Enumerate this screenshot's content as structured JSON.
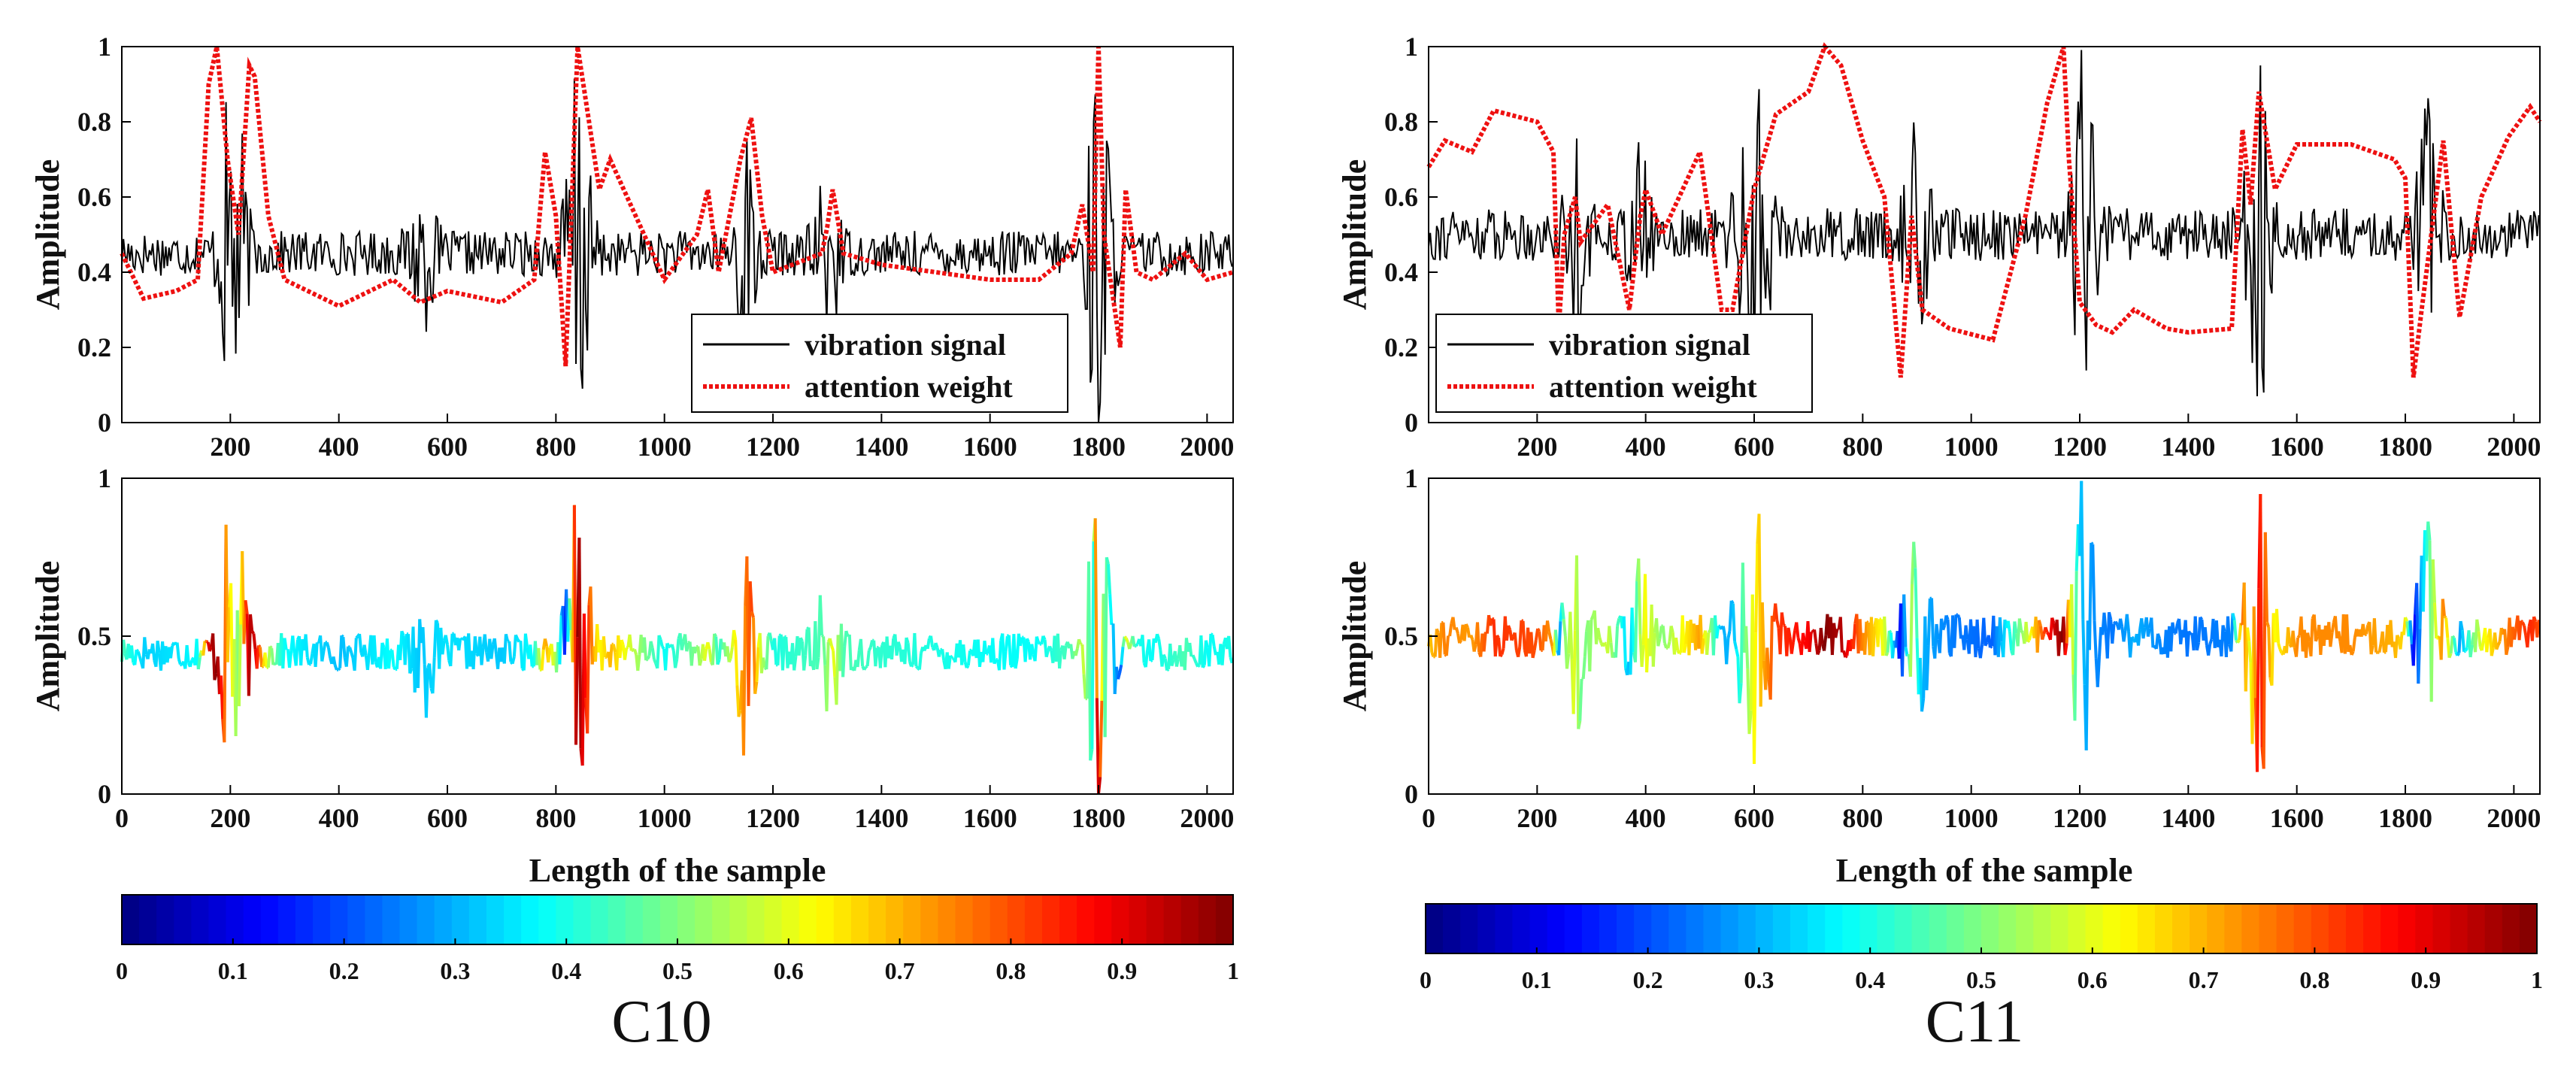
{
  "chart_data": [
    {
      "id": "C10-top",
      "type": "line",
      "xlim": [
        0,
        2048
      ],
      "ylim": [
        0,
        1
      ],
      "xticks": [
        200,
        400,
        600,
        800,
        1000,
        1200,
        1400,
        1600,
        1800,
        2000
      ],
      "yticks": [
        0,
        0.2,
        0.4,
        0.6,
        0.8,
        1
      ],
      "ylabel": "Amplitude",
      "xlabel": "",
      "legend_position": "bottom-right",
      "series": [
        {
          "name": "vibration signal",
          "color": "#000000",
          "style": "solid",
          "baseline": 0.45,
          "noise": 0.06,
          "bursts": [
            {
              "x": 205,
              "amp": 0.5
            },
            {
              "x": 555,
              "amp": 0.16
            },
            {
              "x": 840,
              "amp": 0.5
            },
            {
              "x": 1150,
              "amp": 0.3
            },
            {
              "x": 1300,
              "amp": 0.22
            },
            {
              "x": 1800,
              "amp": 0.5
            }
          ]
        },
        {
          "name": "attention weight",
          "color": "#ee1111",
          "style": "dotted",
          "x": [
            0,
            40,
            100,
            140,
            160,
            175,
            195,
            215,
            235,
            245,
            270,
            300,
            400,
            500,
            550,
            600,
            700,
            760,
            780,
            800,
            818,
            840,
            880,
            900,
            1000,
            1060,
            1080,
            1100,
            1140,
            1160,
            1180,
            1200,
            1290,
            1300,
            1310,
            1330,
            1400,
            1500,
            1600,
            1690,
            1750,
            1770,
            1790,
            1800,
            1810,
            1840,
            1850,
            1870,
            1900,
            1960,
            2000,
            2048
          ],
          "y": [
            0.45,
            0.33,
            0.35,
            0.38,
            0.9,
            1.0,
            0.7,
            0.5,
            0.95,
            0.92,
            0.55,
            0.38,
            0.31,
            0.38,
            0.32,
            0.35,
            0.32,
            0.38,
            0.72,
            0.55,
            0.15,
            1.0,
            0.62,
            0.7,
            0.38,
            0.5,
            0.62,
            0.4,
            0.7,
            0.81,
            0.55,
            0.4,
            0.45,
            0.52,
            0.62,
            0.45,
            0.42,
            0.4,
            0.38,
            0.38,
            0.45,
            0.58,
            0.4,
            1.0,
            0.5,
            0.2,
            0.62,
            0.4,
            0.38,
            0.45,
            0.38,
            0.4
          ]
        }
      ]
    },
    {
      "id": "C10-bottom",
      "type": "line",
      "xlim": [
        0,
        2048
      ],
      "ylim": [
        0,
        1
      ],
      "xticks": [
        0,
        200,
        400,
        600,
        800,
        1000,
        1200,
        1400,
        1600,
        1800,
        2000
      ],
      "yticks": [
        0,
        0.5,
        1
      ],
      "ylabel": "Amplitude",
      "xlabel": "Length of the sample",
      "colormap": "jet",
      "colorbar_ticks": [
        0,
        0.1,
        0.2,
        0.3,
        0.4,
        0.5,
        0.6,
        0.7,
        0.8,
        0.9,
        1
      ],
      "caption": "C10"
    },
    {
      "id": "C11-top",
      "type": "line",
      "xlim": [
        0,
        2048
      ],
      "ylim": [
        0,
        1
      ],
      "xticks": [
        200,
        400,
        600,
        800,
        1000,
        1200,
        1400,
        1600,
        1800,
        2000
      ],
      "yticks": [
        0,
        0.2,
        0.4,
        0.6,
        0.8,
        1
      ],
      "ylabel": "Amplitude",
      "xlabel": "",
      "legend_position": "bottom-left",
      "series": [
        {
          "name": "vibration signal",
          "color": "#000000",
          "style": "solid",
          "baseline": 0.5,
          "noise": 0.07,
          "bursts": [
            {
              "x": 270,
              "amp": 0.25
            },
            {
              "x": 390,
              "amp": 0.2
            },
            {
              "x": 580,
              "amp": 0.22
            },
            {
              "x": 610,
              "amp": 0.3
            },
            {
              "x": 900,
              "amp": 0.3
            },
            {
              "x": 1210,
              "amp": 0.5
            },
            {
              "x": 1530,
              "amp": 0.45
            },
            {
              "x": 1840,
              "amp": 0.3
            }
          ]
        },
        {
          "name": "attention weight",
          "color": "#ee1111",
          "style": "dotted",
          "x": [
            0,
            30,
            80,
            120,
            200,
            230,
            240,
            250,
            270,
            280,
            330,
            370,
            390,
            400,
            430,
            500,
            540,
            560,
            600,
            640,
            700,
            730,
            760,
            800,
            840,
            870,
            890,
            910,
            960,
            1040,
            1100,
            1140,
            1170,
            1180,
            1200,
            1230,
            1260,
            1300,
            1360,
            1400,
            1480,
            1500,
            1515,
            1530,
            1560,
            1600,
            1700,
            1780,
            1800,
            1815,
            1830,
            1870,
            1900,
            1940,
            1990,
            2030,
            2048
          ],
          "y": [
            0.68,
            0.75,
            0.72,
            0.83,
            0.8,
            0.72,
            0.25,
            0.5,
            0.6,
            0.48,
            0.58,
            0.3,
            0.55,
            0.62,
            0.5,
            0.72,
            0.3,
            0.3,
            0.62,
            0.82,
            0.88,
            1.0,
            0.95,
            0.75,
            0.6,
            0.12,
            0.55,
            0.3,
            0.25,
            0.22,
            0.55,
            0.85,
            1.0,
            0.7,
            0.32,
            0.26,
            0.24,
            0.3,
            0.25,
            0.24,
            0.25,
            0.78,
            0.58,
            0.88,
            0.62,
            0.74,
            0.74,
            0.7,
            0.65,
            0.12,
            0.3,
            0.75,
            0.28,
            0.6,
            0.76,
            0.84,
            0.8
          ]
        }
      ]
    },
    {
      "id": "C11-bottom",
      "type": "line",
      "xlim": [
        0,
        2048
      ],
      "ylim": [
        0,
        1
      ],
      "xticks": [
        0,
        200,
        400,
        600,
        800,
        1000,
        1200,
        1400,
        1600,
        1800,
        2000
      ],
      "yticks": [
        0,
        0.5,
        1
      ],
      "ylabel": "Amplitude",
      "xlabel": "Length of the sample",
      "colormap": "jet",
      "colorbar_ticks": [
        0,
        0.1,
        0.2,
        0.3,
        0.4,
        0.5,
        0.6,
        0.7,
        0.8,
        0.9,
        1
      ],
      "caption": "C11"
    }
  ],
  "labels": {
    "ylabel": "Amplitude",
    "xlabel": "Length of the sample",
    "legend_vibration": "vibration signal",
    "legend_attention": "attention weight",
    "caption_left": "C10",
    "caption_right": "C11"
  },
  "colors": {
    "signal": "#000000",
    "attention": "#ee1111"
  }
}
